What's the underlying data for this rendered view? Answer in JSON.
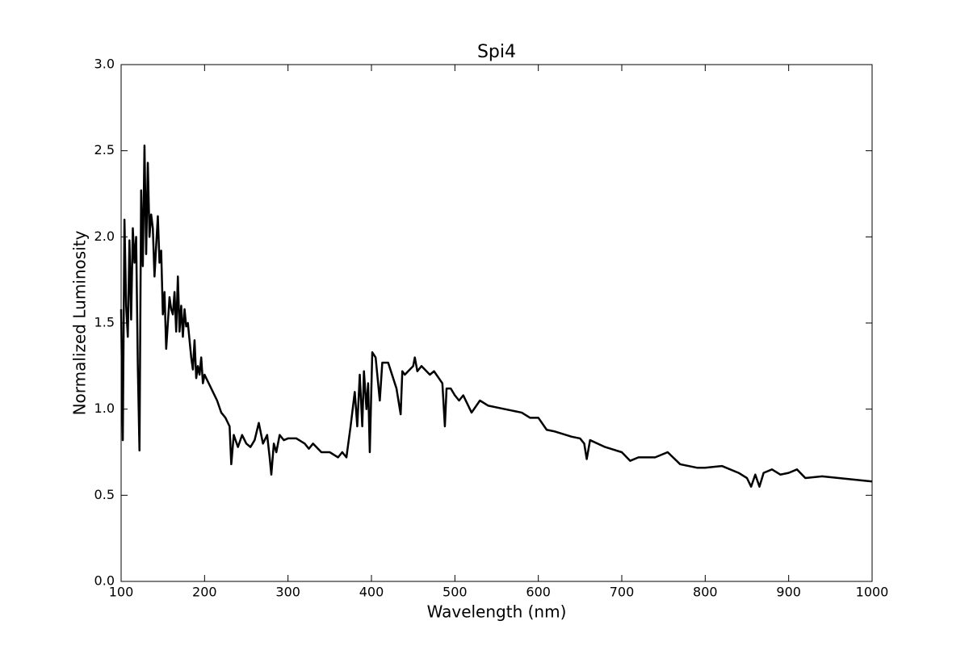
{
  "chart_data": {
    "type": "line",
    "title": "Spi4",
    "x_label": "Wavelength (nm)",
    "y_label": "Normalized Luminosity",
    "x": [
      100,
      102,
      104,
      106,
      108,
      110,
      112,
      114,
      116,
      118,
      120,
      122,
      124,
      126,
      128,
      130,
      132,
      134,
      136,
      138,
      140,
      142,
      144,
      146,
      148,
      150,
      152,
      154,
      156,
      158,
      160,
      162,
      164,
      166,
      168,
      170,
      172,
      174,
      176,
      178,
      180,
      182,
      184,
      186,
      188,
      190,
      192,
      194,
      196,
      198,
      200,
      205,
      210,
      215,
      220,
      225,
      230,
      232,
      235,
      240,
      245,
      250,
      255,
      260,
      265,
      270,
      275,
      278,
      280,
      283,
      286,
      290,
      295,
      300,
      310,
      320,
      325,
      330,
      340,
      350,
      360,
      365,
      370,
      375,
      380,
      383,
      386,
      389,
      391,
      394,
      396,
      398,
      401,
      405,
      410,
      413,
      420,
      430,
      435,
      437,
      440,
      450,
      452,
      455,
      460,
      470,
      475,
      485,
      488,
      490,
      495,
      500,
      505,
      510,
      520,
      530,
      540,
      560,
      580,
      590,
      600,
      610,
      620,
      640,
      650,
      655,
      658,
      662,
      680,
      700,
      710,
      720,
      740,
      755,
      770,
      790,
      800,
      820,
      840,
      850,
      855,
      860,
      865,
      870,
      880,
      890,
      900,
      910,
      920,
      940,
      960,
      980,
      1000
    ],
    "series": [
      {
        "name": "Spi4",
        "color": "#000000",
        "values": [
          1.58,
          0.82,
          2.1,
          1.6,
          1.42,
          1.98,
          1.52,
          2.05,
          1.85,
          2.0,
          1.25,
          0.76,
          2.27,
          1.83,
          2.53,
          1.9,
          2.43,
          2.0,
          2.13,
          2.05,
          1.77,
          1.95,
          2.12,
          1.85,
          1.92,
          1.55,
          1.68,
          1.35,
          1.5,
          1.65,
          1.58,
          1.55,
          1.68,
          1.45,
          1.77,
          1.45,
          1.6,
          1.42,
          1.58,
          1.48,
          1.5,
          1.4,
          1.3,
          1.23,
          1.4,
          1.18,
          1.25,
          1.2,
          1.3,
          1.15,
          1.2,
          1.15,
          1.1,
          1.05,
          0.98,
          0.95,
          0.9,
          0.68,
          0.85,
          0.78,
          0.85,
          0.8,
          0.78,
          0.82,
          0.92,
          0.8,
          0.85,
          0.72,
          0.62,
          0.8,
          0.75,
          0.85,
          0.82,
          0.83,
          0.83,
          0.8,
          0.77,
          0.8,
          0.75,
          0.75,
          0.72,
          0.75,
          0.72,
          0.9,
          1.1,
          0.9,
          1.2,
          0.9,
          1.22,
          1.0,
          1.15,
          0.75,
          1.33,
          1.3,
          1.05,
          1.27,
          1.27,
          1.12,
          0.97,
          1.22,
          1.2,
          1.25,
          1.3,
          1.22,
          1.25,
          1.2,
          1.22,
          1.15,
          0.9,
          1.12,
          1.12,
          1.08,
          1.05,
          1.08,
          0.98,
          1.05,
          1.02,
          1.0,
          0.98,
          0.95,
          0.95,
          0.88,
          0.87,
          0.84,
          0.83,
          0.8,
          0.71,
          0.82,
          0.78,
          0.75,
          0.7,
          0.72,
          0.72,
          0.75,
          0.68,
          0.66,
          0.66,
          0.67,
          0.63,
          0.6,
          0.55,
          0.62,
          0.55,
          0.63,
          0.65,
          0.62,
          0.63,
          0.65,
          0.6,
          0.61,
          0.6,
          0.59,
          0.58
        ]
      }
    ],
    "xlim": [
      100,
      1000
    ],
    "xticks": [
      100,
      200,
      300,
      400,
      500,
      600,
      700,
      800,
      900,
      1000
    ],
    "ylim": [
      0,
      3
    ],
    "yticks": [
      {
        "value": 0,
        "label": "0.0"
      },
      0.5,
      {
        "value": 1,
        "label": "1.0"
      },
      1.5,
      {
        "value": 2,
        "label": "2.0"
      },
      2.5,
      {
        "value": 3,
        "label": "3.0"
      }
    ],
    "grid": false
  }
}
